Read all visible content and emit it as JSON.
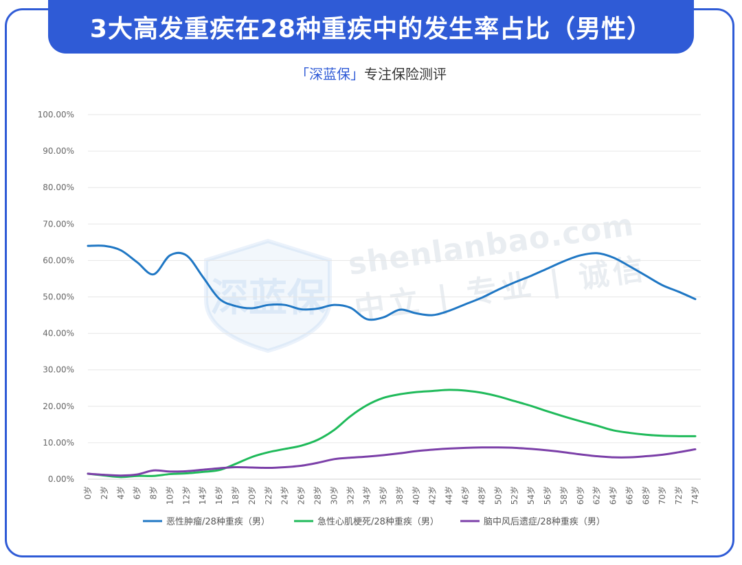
{
  "header": {
    "title": "3大高发重疾在28种重疾中的发生率占比（男性）",
    "subtitle_brand": "「深蓝保」",
    "subtitle_rest": "专注保险测评"
  },
  "watermark": {
    "logo_text": "深蓝保",
    "line1": "shenlanbao.com",
    "line2": "中立 | 专业 | 诚信"
  },
  "colors": {
    "tumor": "#1f77c4",
    "heart": "#1fba5a",
    "stroke": "#7b3fa8",
    "accent": "#2f5bd6",
    "grid": "#e6e6e6"
  },
  "chart_data": {
    "type": "line",
    "title": "",
    "xlabel": "",
    "ylabel": "",
    "ylim": [
      0,
      100
    ],
    "y_ticks": [
      "0.00%",
      "10.00%",
      "20.00%",
      "30.00%",
      "40.00%",
      "50.00%",
      "60.00%",
      "70.00%",
      "80.00%",
      "90.00%",
      "100.00%"
    ],
    "grid": true,
    "legend_position": "bottom",
    "x": [
      "0岁",
      "2岁",
      "4岁",
      "6岁",
      "8岁",
      "10岁",
      "12岁",
      "14岁",
      "16岁",
      "18岁",
      "20岁",
      "22岁",
      "24岁",
      "26岁",
      "28岁",
      "30岁",
      "32岁",
      "34岁",
      "36岁",
      "38岁",
      "40岁",
      "42岁",
      "44岁",
      "46岁",
      "48岁",
      "50岁",
      "52岁",
      "54岁",
      "56岁",
      "58岁",
      "60岁",
      "62岁",
      "64岁",
      "66岁",
      "68岁",
      "70岁",
      "72岁",
      "74岁"
    ],
    "series": [
      {
        "name": "恶性肿瘤/28种重疾（男）",
        "color": "#1f77c4",
        "values": [
          64.0,
          64.0,
          62.8,
          59.5,
          56.2,
          61.4,
          61.4,
          55.5,
          49.5,
          47.5,
          46.9,
          47.8,
          47.8,
          46.6,
          46.8,
          47.8,
          47.0,
          43.9,
          44.4,
          46.5,
          45.5,
          45.0,
          46.2,
          48.0,
          49.8,
          52.0,
          54.0,
          55.8,
          57.8,
          59.8,
          61.4,
          62.0,
          60.8,
          58.4,
          55.8,
          53.2,
          51.4,
          49.4
        ]
      },
      {
        "name": "急性心肌梗死/28种重疾（男）",
        "color": "#1fba5a",
        "values": [
          1.5,
          1.0,
          0.6,
          0.9,
          0.9,
          1.4,
          1.6,
          2.0,
          2.5,
          4.2,
          6.1,
          7.4,
          8.3,
          9.2,
          10.8,
          13.5,
          17.3,
          20.3,
          22.3,
          23.3,
          23.9,
          24.2,
          24.5,
          24.3,
          23.7,
          22.7,
          21.4,
          20.1,
          18.6,
          17.2,
          15.9,
          14.7,
          13.4,
          12.7,
          12.2,
          11.9,
          11.8,
          11.8
        ]
      },
      {
        "name": "脑中风后遗症/28种重疾（男）",
        "color": "#7b3fa8",
        "values": [
          1.5,
          1.2,
          1.0,
          1.3,
          2.4,
          2.1,
          2.2,
          2.6,
          3.0,
          3.3,
          3.2,
          3.1,
          3.3,
          3.7,
          4.5,
          5.5,
          5.9,
          6.2,
          6.6,
          7.1,
          7.7,
          8.1,
          8.4,
          8.6,
          8.7,
          8.7,
          8.6,
          8.3,
          7.9,
          7.4,
          6.8,
          6.3,
          6.0,
          6.0,
          6.3,
          6.7,
          7.4,
          8.2
        ]
      }
    ]
  }
}
